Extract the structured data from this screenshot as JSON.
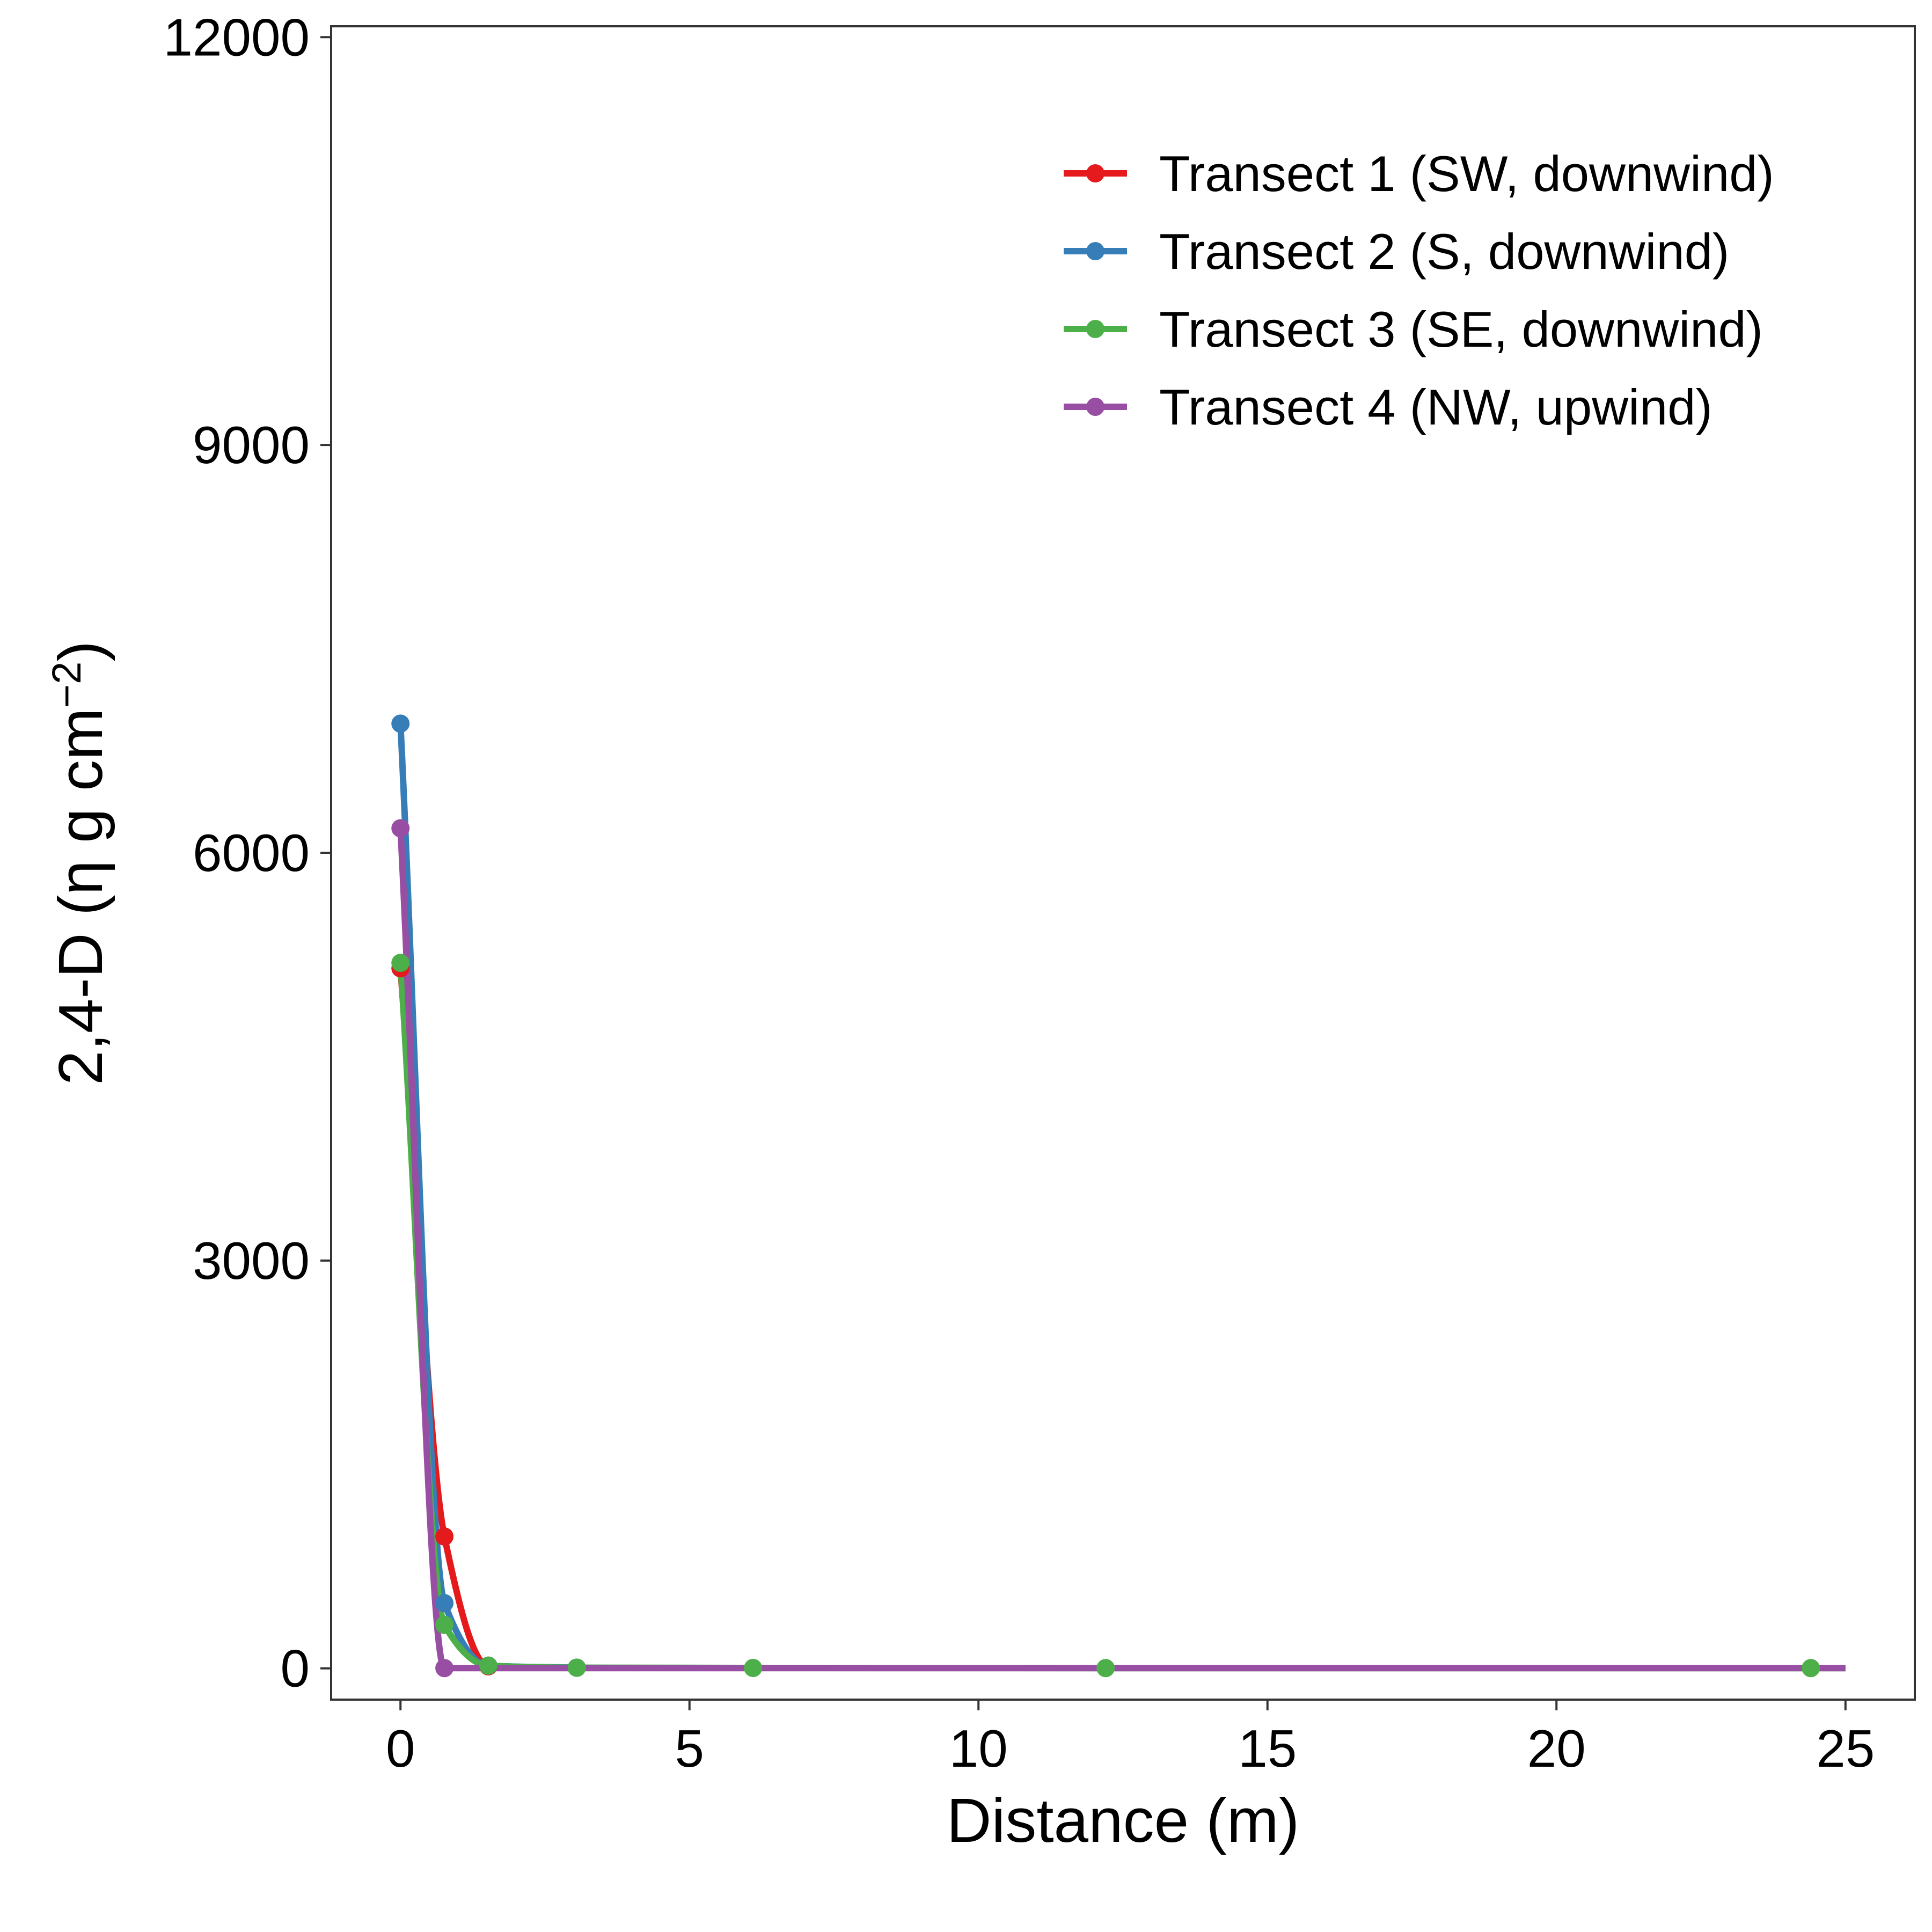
{
  "chart_data": {
    "type": "line",
    "xlabel": "Distance (m)",
    "ylabel": {
      "main": "2,4-D (η g cm",
      "superscript": "−2",
      "close": ")"
    },
    "xlim": [
      -1.2,
      26.2
    ],
    "ylim": [
      -230,
      12080
    ],
    "xticks": [
      0,
      5,
      10,
      15,
      20,
      25
    ],
    "yticks": [
      0,
      3000,
      6000,
      9000,
      12000
    ],
    "grid": false,
    "legend_position": "top-right",
    "series": [
      {
        "name": "Transect 1 (SW, downwind)",
        "color": "#e41a1c",
        "x": [
          0,
          0.76,
          1.52,
          3.05
        ],
        "y": [
          5150,
          970,
          15,
          5
        ]
      },
      {
        "name": "Transect 2 (S, downwind)",
        "color": "#377eb8",
        "x": [
          0,
          0.76,
          1.52,
          3.05
        ],
        "y": [
          6950,
          480,
          20,
          5
        ]
      },
      {
        "name": "Transect 3 (SE, downwind)",
        "color": "#4daf4a",
        "x": [
          0,
          0.76,
          1.52,
          3.05,
          6.1,
          12.2,
          24.4,
          25
        ],
        "y": [
          5190,
          320,
          20,
          5,
          3,
          2,
          2,
          2
        ]
      },
      {
        "name": "Transect 4 (NW, upwind)",
        "color": "#984ea3",
        "x": [
          0,
          0.76,
          1.52,
          3.05,
          6.1,
          12.2,
          24.4,
          25
        ],
        "y": [
          6180,
          2,
          2,
          2,
          2,
          2,
          2,
          2
        ],
        "points_shown": 2
      }
    ]
  }
}
